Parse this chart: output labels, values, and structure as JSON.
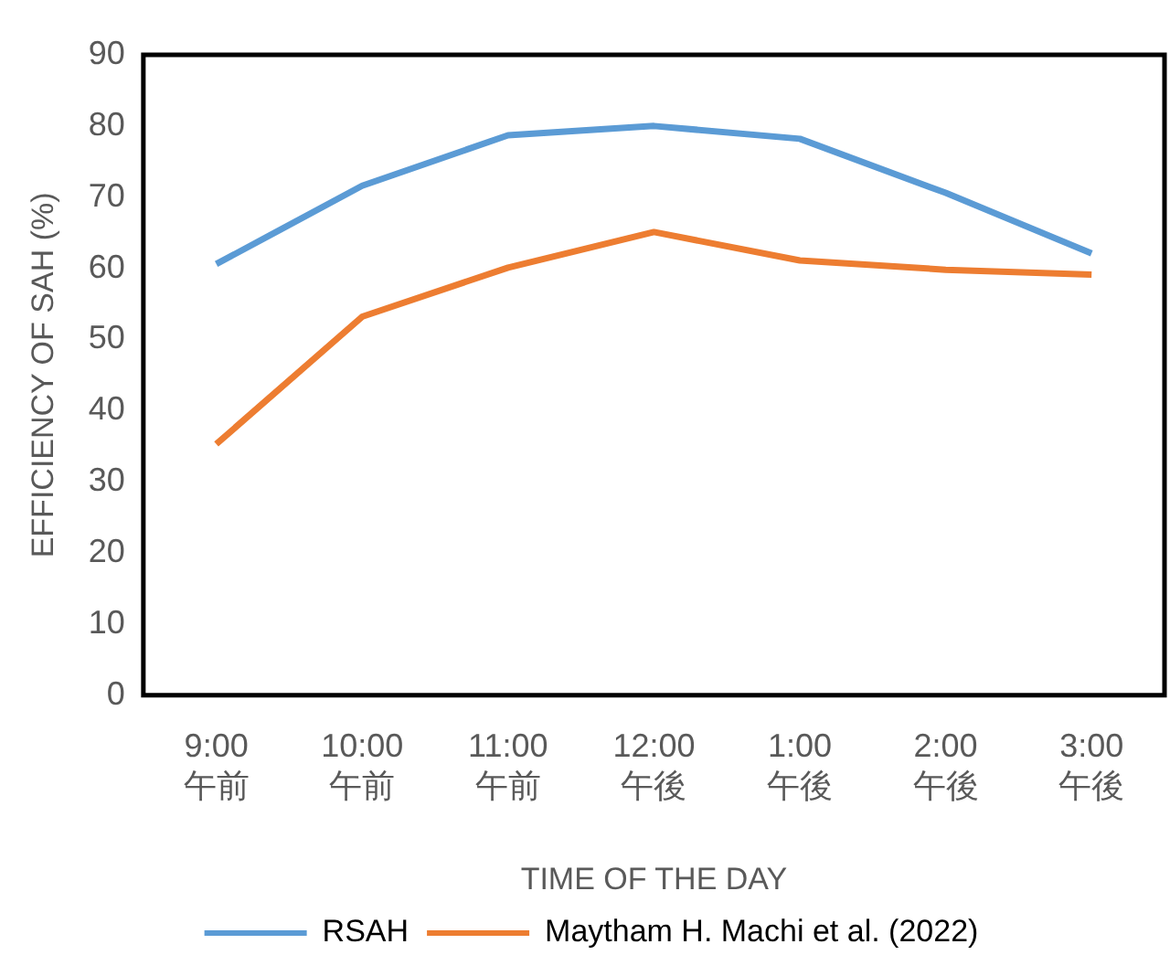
{
  "chart_data": {
    "type": "line",
    "xlabel": "TIME OF THE DAY",
    "ylabel": "EFFICIENCY OF SAH (%)",
    "categories": [
      "9:00 午前",
      "10:00 午前",
      "11:00 午前",
      "12:00 午後",
      "1:00 午後",
      "2:00 午後",
      "3:00 午後"
    ],
    "series": [
      {
        "name": "RSAH",
        "color": "#5b9bd5",
        "values": [
          60.6,
          71.6,
          78.7,
          80.0,
          78.2,
          70.6,
          62.1
        ]
      },
      {
        "name": "Maytham H. Machi et al. (2022)",
        "color": "#ed7d31",
        "values": [
          35.3,
          53.2,
          60.1,
          65.1,
          61.1,
          59.8,
          59.1
        ]
      }
    ],
    "ylim": [
      0,
      90
    ],
    "yticks": [
      0,
      10,
      20,
      30,
      40,
      50,
      60,
      70,
      80,
      90
    ],
    "grid": false,
    "legend": "bottom",
    "marker": "none",
    "line_style": "solid"
  }
}
